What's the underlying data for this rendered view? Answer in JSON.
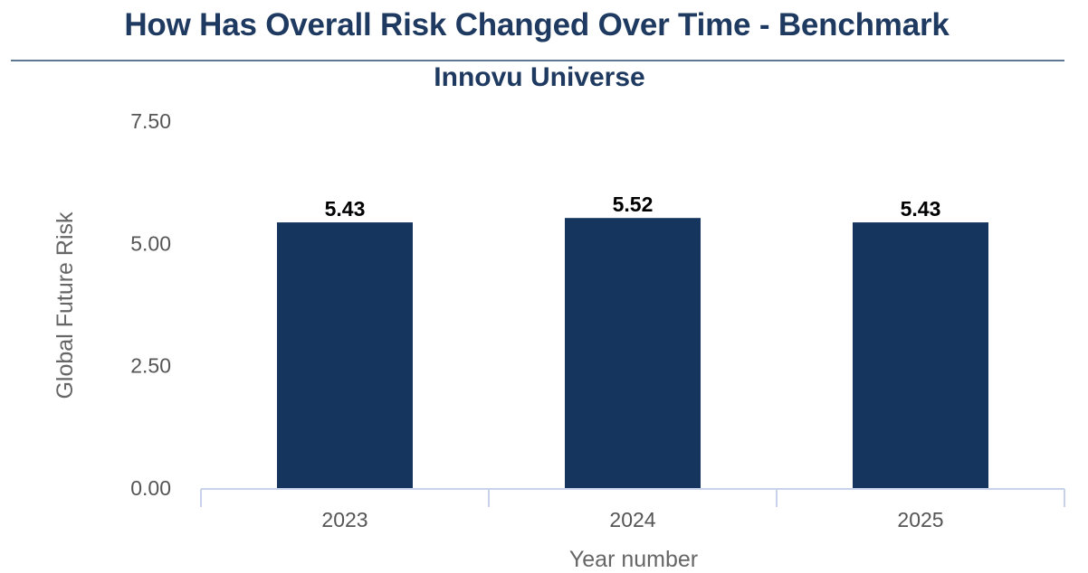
{
  "header": {
    "title": "How Has Overall Risk Changed Over Time - Benchmark",
    "subtitle": "Innovu Universe"
  },
  "chart_data": {
    "type": "bar",
    "title": "How Has Overall Risk Changed Over Time - Benchmark",
    "subtitle": "Innovu Universe",
    "xlabel": "Year number",
    "ylabel": "Global Future Risk",
    "categories": [
      "2023",
      "2024",
      "2025"
    ],
    "values": [
      5.43,
      5.52,
      5.43
    ],
    "data_labels": [
      "5.43",
      "5.52",
      "5.43"
    ],
    "yticks": [
      "0.00",
      "2.50",
      "5.00",
      "7.50"
    ],
    "ylim": [
      0,
      7.5
    ],
    "grid": false,
    "legend": "none",
    "bar_color": "#15355e",
    "axis_color": "#c8d2ea"
  }
}
